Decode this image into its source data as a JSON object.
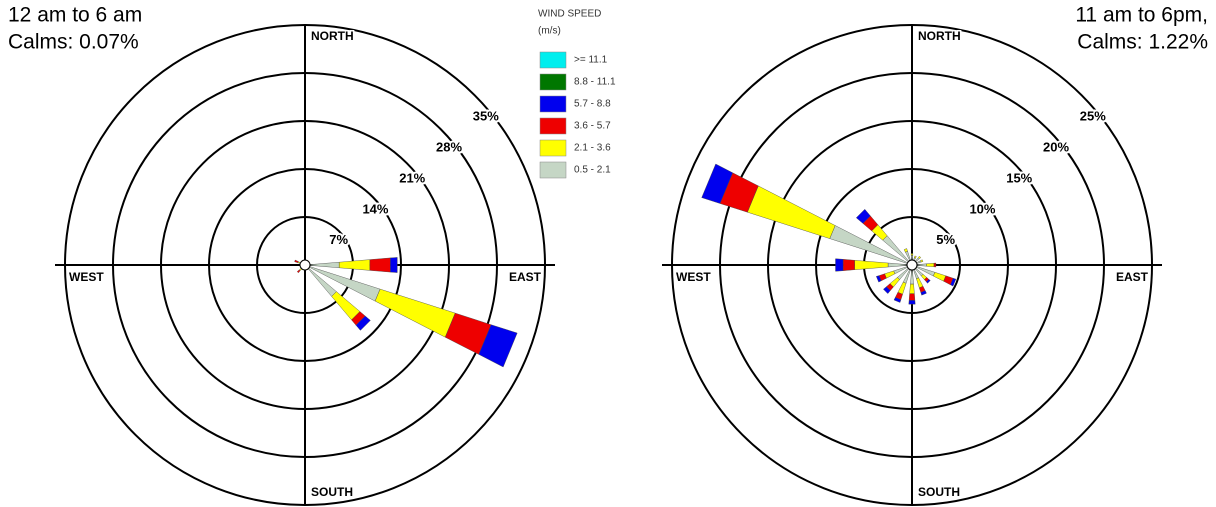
{
  "chart_data": [
    {
      "type": "windrose",
      "title": "12 am to 6 am",
      "subtitle": "Calms: 0.07%",
      "legend_title": "WIND SPEED",
      "legend_units": "(m/s)",
      "categories": [
        "NORTH",
        null,
        null,
        null,
        "EAST",
        null,
        null,
        null,
        "SOUTH",
        null,
        null,
        null,
        "WEST",
        null,
        null,
        null
      ],
      "rlim": [
        0,
        35
      ],
      "rticks": [
        {
          "value": 7,
          "label": "7%"
        },
        {
          "value": 14,
          "label": "14%"
        },
        {
          "value": 21,
          "label": "21%"
        },
        {
          "value": 28,
          "label": "28%"
        },
        {
          "value": 35,
          "label": "35%"
        }
      ],
      "series": [
        {
          "name": "0.5 - 2.1",
          "color": "#c5d6c5",
          "values": [
            0.3,
            0.2,
            0.3,
            0.5,
            5,
            11.5,
            6,
            0.5,
            0.3,
            0.5,
            0.8,
            0.5,
            0.4,
            0.8,
            0.5,
            0.3
          ]
        },
        {
          "name": "2.1 - 3.6",
          "color": "#ffff00",
          "values": [
            0,
            0,
            0,
            0,
            4.5,
            11.5,
            4.5,
            0,
            0,
            0,
            0.3,
            0,
            0,
            0.3,
            0,
            0
          ]
        },
        {
          "name": "3.6 - 5.7",
          "color": "#ee0000",
          "values": [
            0,
            0,
            0,
            0,
            3,
            5.5,
            1,
            0,
            0,
            0,
            0.4,
            0,
            0.3,
            0.5,
            0,
            0
          ]
        },
        {
          "name": "5.7 - 8.8",
          "color": "#0000ee",
          "values": [
            0,
            0,
            0,
            0,
            1,
            4,
            1,
            0,
            0,
            0,
            0,
            0,
            0,
            0,
            0,
            0
          ]
        },
        {
          "name": "8.8 - 11.1",
          "color": "#007700",
          "values": [
            0,
            0,
            0,
            0,
            0,
            0,
            0,
            0,
            0,
            0,
            0,
            0,
            0,
            0,
            0,
            0
          ]
        },
        {
          "name": ">= 11.1",
          "color": "#00eeee",
          "values": [
            0,
            0,
            0,
            0,
            0,
            0,
            0,
            0,
            0,
            0,
            0,
            0,
            0,
            0,
            0,
            0
          ]
        }
      ]
    },
    {
      "type": "windrose",
      "title": "11 am to 6pm,",
      "subtitle": "Calms: 1.22%",
      "categories": [
        "NORTH",
        null,
        null,
        null,
        "EAST",
        null,
        null,
        null,
        "SOUTH",
        null,
        null,
        null,
        "WEST",
        null,
        null,
        null
      ],
      "rlim": [
        0,
        25
      ],
      "rticks": [
        {
          "value": 5,
          "label": "5%"
        },
        {
          "value": 10,
          "label": "10%"
        },
        {
          "value": 15,
          "label": "15%"
        },
        {
          "value": 20,
          "label": "20%"
        },
        {
          "value": 25,
          "label": "25%"
        }
      ],
      "series": [
        {
          "color": "#c5d6c5",
          "values": [
            1,
            0.8,
            1,
            1,
            1.5,
            2.5,
            1.5,
            1.5,
            2,
            2,
            2,
            2,
            2.5,
            9,
            4,
            1.5
          ]
        },
        {
          "color": "#ffff00",
          "values": [
            0.2,
            0.2,
            0.2,
            0.2,
            0.8,
            1.2,
            0.5,
            1,
            1,
            1.2,
            1,
            1,
            3.5,
            9,
            1.5,
            0.3
          ]
        },
        {
          "color": "#ee0000",
          "values": [
            0,
            0,
            0,
            0,
            0.2,
            0.8,
            0.3,
            0.5,
            0.7,
            0.6,
            0.5,
            0.6,
            1.2,
            3,
            1.2,
            0
          ]
        },
        {
          "color": "#0000ee",
          "values": [
            0,
            0,
            0,
            0,
            0,
            0.3,
            0.2,
            0.3,
            0.4,
            0.3,
            0.4,
            0.3,
            0.8,
            2,
            0.9,
            0
          ]
        },
        {
          "color": "#007700",
          "values": [
            0,
            0,
            0,
            0,
            0,
            0,
            0,
            0,
            0,
            0,
            0,
            0,
            0,
            0,
            0,
            0
          ]
        },
        {
          "color": "#00eeee",
          "values": [
            0,
            0,
            0,
            0,
            0,
            0,
            0,
            0,
            0,
            0,
            0,
            0,
            0,
            0,
            0,
            0
          ]
        }
      ]
    }
  ]
}
